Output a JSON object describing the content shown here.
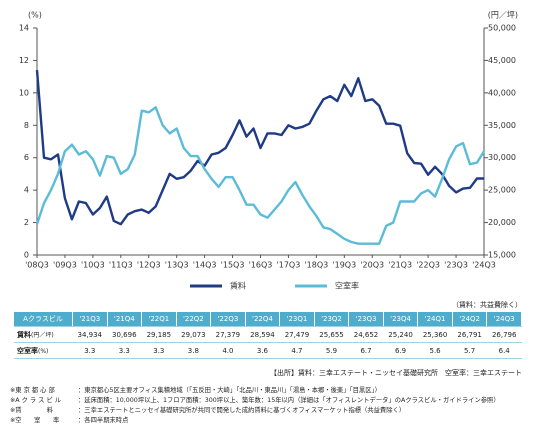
{
  "chart_data": {
    "type": "line",
    "y_unit": "(%)",
    "y2_unit": "(円／坪)",
    "categories": [
      "'08Q3",
      null,
      null,
      null,
      "'09Q3",
      null,
      null,
      null,
      "'10Q3",
      null,
      null,
      null,
      "'11Q3",
      null,
      null,
      null,
      "'12Q3",
      null,
      null,
      null,
      "'13Q3",
      null,
      null,
      null,
      "'14Q3",
      null,
      null,
      null,
      "'15Q3",
      null,
      null,
      null,
      "'16Q3",
      null,
      null,
      null,
      "'17Q3",
      null,
      null,
      null,
      "'18Q3",
      null,
      null,
      null,
      "'19Q3",
      null,
      null,
      null,
      "'20Q3",
      null,
      null,
      null,
      "'21Q3",
      null,
      null,
      null,
      "'22Q3",
      null,
      null,
      null,
      "'23Q3",
      null,
      null,
      null,
      "'24Q3"
    ],
    "series": [
      {
        "name": "賃料",
        "color": "#1f3a86",
        "axis": "y2",
        "values": [
          43500,
          30000,
          29750,
          30500,
          23750,
          20500,
          23250,
          23000,
          21250,
          22250,
          24000,
          20250,
          19750,
          21250,
          21750,
          22000,
          21500,
          22500,
          25000,
          27500,
          26750,
          27000,
          28000,
          29500,
          28750,
          30500,
          30750,
          31500,
          33500,
          35750,
          33250,
          34500,
          31500,
          33750,
          33750,
          33500,
          35000,
          34500,
          34750,
          35250,
          37250,
          39000,
          39500,
          38750,
          41250,
          39500,
          42250,
          38750,
          39000,
          38000,
          35250,
          35250,
          34934,
          30696,
          29185,
          29073,
          27379,
          28594,
          27479,
          25655,
          24652,
          25240,
          25360,
          26791,
          26796
        ]
      },
      {
        "name": "空室率",
        "color": "#5bbcd8",
        "values": [
          1.9,
          3.2,
          4.0,
          5.0,
          6.4,
          6.8,
          6.2,
          6.4,
          5.9,
          4.9,
          6.1,
          6.0,
          5.0,
          5.3,
          6.2,
          8.9,
          8.8,
          9.1,
          8.0,
          7.5,
          7.8,
          6.6,
          6.1,
          6.1,
          5.3,
          4.7,
          4.2,
          4.8,
          4.8,
          4.0,
          3.1,
          3.1,
          2.5,
          2.3,
          2.8,
          3.3,
          4.0,
          4.5,
          3.7,
          3.0,
          2.4,
          1.7,
          1.6,
          1.3,
          1.0,
          0.8,
          0.7,
          0.7,
          0.7,
          0.7,
          1.8,
          2.0,
          3.3,
          3.3,
          3.3,
          3.8,
          4.0,
          3.6,
          4.7,
          5.9,
          6.7,
          6.9,
          5.6,
          5.7,
          6.4
        ]
      }
    ],
    "ylim": [
      0,
      14
    ],
    "yticks": [
      0,
      2,
      4,
      6,
      8,
      10,
      12,
      14
    ],
    "y2lim": [
      15000,
      50000
    ],
    "y2ticks": [
      {
        "value": 15000,
        "label": "15,000"
      },
      {
        "value": 20000,
        "label": "20,000"
      },
      {
        "value": 25000,
        "label": "25,000"
      },
      {
        "value": 30000,
        "label": "30,000"
      },
      {
        "value": 35000,
        "label": "35,000"
      },
      {
        "value": 40000,
        "label": "40,000"
      },
      {
        "value": 45000,
        "label": "45,000"
      },
      {
        "value": 50000,
        "label": "50,000"
      }
    ],
    "grid": false,
    "legend": "bottom"
  },
  "table": {
    "note": "（賃料：共益費除く）",
    "header": [
      "Aクラスビル",
      "'21Q3",
      "'21Q4",
      "'22Q1",
      "'22Q2",
      "'22Q3",
      "'22Q4",
      "'23Q1",
      "'23Q2",
      "'23Q3",
      "'23Q4",
      "'24Q1",
      "'24Q2",
      "'24Q3"
    ],
    "rows": [
      {
        "label": "賃料",
        "unit": "(円／坪)",
        "cells": [
          "34,934",
          "30,696",
          "29,185",
          "29,073",
          "27,379",
          "28,594",
          "27,479",
          "25,655",
          "24,652",
          "25,240",
          "25,360",
          "26,791",
          "26,796"
        ]
      },
      {
        "label": "空室率",
        "unit": "(%)",
        "cells": [
          "3.3",
          "3.3",
          "3.3",
          "3.8",
          "4.0",
          "3.6",
          "4.7",
          "5.9",
          "6.7",
          "6.9",
          "5.6",
          "5.7",
          "6.4"
        ]
      }
    ]
  },
  "source": "【出所】賃料：三幸エステート・ニッセイ基礎研究所　空室率：三幸エステート",
  "footnotes": [
    {
      "label": "※東 京 都 心 部",
      "text": "：東京都心5区主要オフィス集積地域（「五反田・大崎」「北品川・東品川」「湯島・本郷・後楽」「目黒区」）"
    },
    {
      "label": "※A ク ラ ス ビ ル",
      "text": "：延床面積：10,000坪以上、1フロア面積：300坪以上、築年数：15年以内（詳細は「オフィスレントデータ」のAクラスビル・ガイドライン参照）"
    },
    {
      "label": "※賃　　　　料",
      "text": "：三幸エステートとニッセイ基礎研究所が共同で開発した成約賃料に基づくオフィスマーケット指標（共益費除く）"
    },
    {
      "label": "※空　　室　　率",
      "text": "：各四半期末時点"
    }
  ]
}
